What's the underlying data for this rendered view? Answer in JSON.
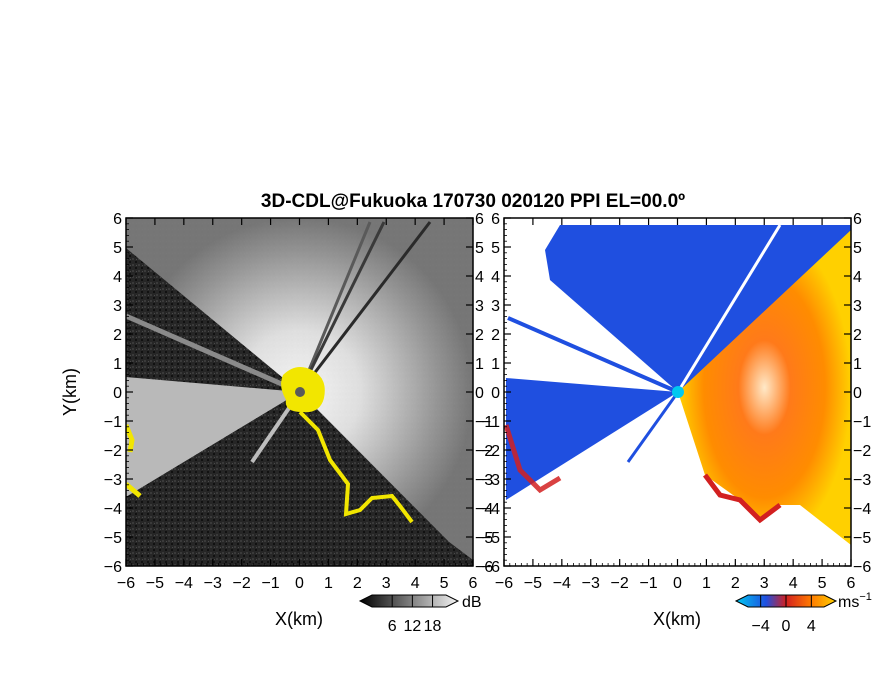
{
  "chart_data": [
    {
      "type": "heatmap",
      "title": "3D-CDL@Fukuoka 170730 020120 PPI EL=00.0º",
      "quantity": "reflectivity",
      "xlabel": "X(km)",
      "ylabel": "Y(km)",
      "xlim": [
        -6,
        6
      ],
      "ylim": [
        -6,
        6
      ],
      "xticks": [
        "−6",
        "−5",
        "−4",
        "−3",
        "−2",
        "−1",
        "0",
        "1",
        "2",
        "3",
        "4",
        "5",
        "6"
      ],
      "yticks": [
        "6",
        "5",
        "4",
        "3",
        "2",
        "1",
        "0",
        "−1",
        "−2",
        "−3",
        "−4",
        "−5",
        "−6"
      ],
      "colorbar": {
        "unit": "dB",
        "ticks": [
          "6",
          "12",
          "18"
        ],
        "min": 0,
        "max": 22,
        "extend": "both"
      },
      "palette": {
        "low": "#1a1a1a",
        "high": "#f4f4f4",
        "highlight": "#f2e600"
      },
      "radar_site": [
        0,
        0
      ]
    },
    {
      "type": "heatmap",
      "quantity": "doppler velocity",
      "xlabel": "X(km)",
      "ylabel": "",
      "xlim": [
        -6,
        6
      ],
      "ylim": [
        -6,
        6
      ],
      "xticks": [
        "−6",
        "−5",
        "−4",
        "−3",
        "−2",
        "−1",
        "0",
        "1",
        "2",
        "3",
        "4",
        "5",
        "6"
      ],
      "yticks": [
        "6",
        "5",
        "4",
        "3",
        "2",
        "1",
        "0",
        "−1",
        "−2",
        "−3",
        "−4",
        "−5",
        "−6"
      ],
      "colorbar": {
        "unit": "ms",
        "unit_sup": "−1",
        "ticks": [
          "−4",
          "0",
          "4"
        ],
        "min": -6,
        "max": 6,
        "extend": "both"
      },
      "palette": {
        "negative": "#1f4fe0",
        "negative_light": "#00b8e8",
        "zero": "#d22020",
        "positive": "#ff7a00",
        "positive_light": "#ffd000"
      },
      "radar_site": [
        0,
        0
      ]
    }
  ]
}
